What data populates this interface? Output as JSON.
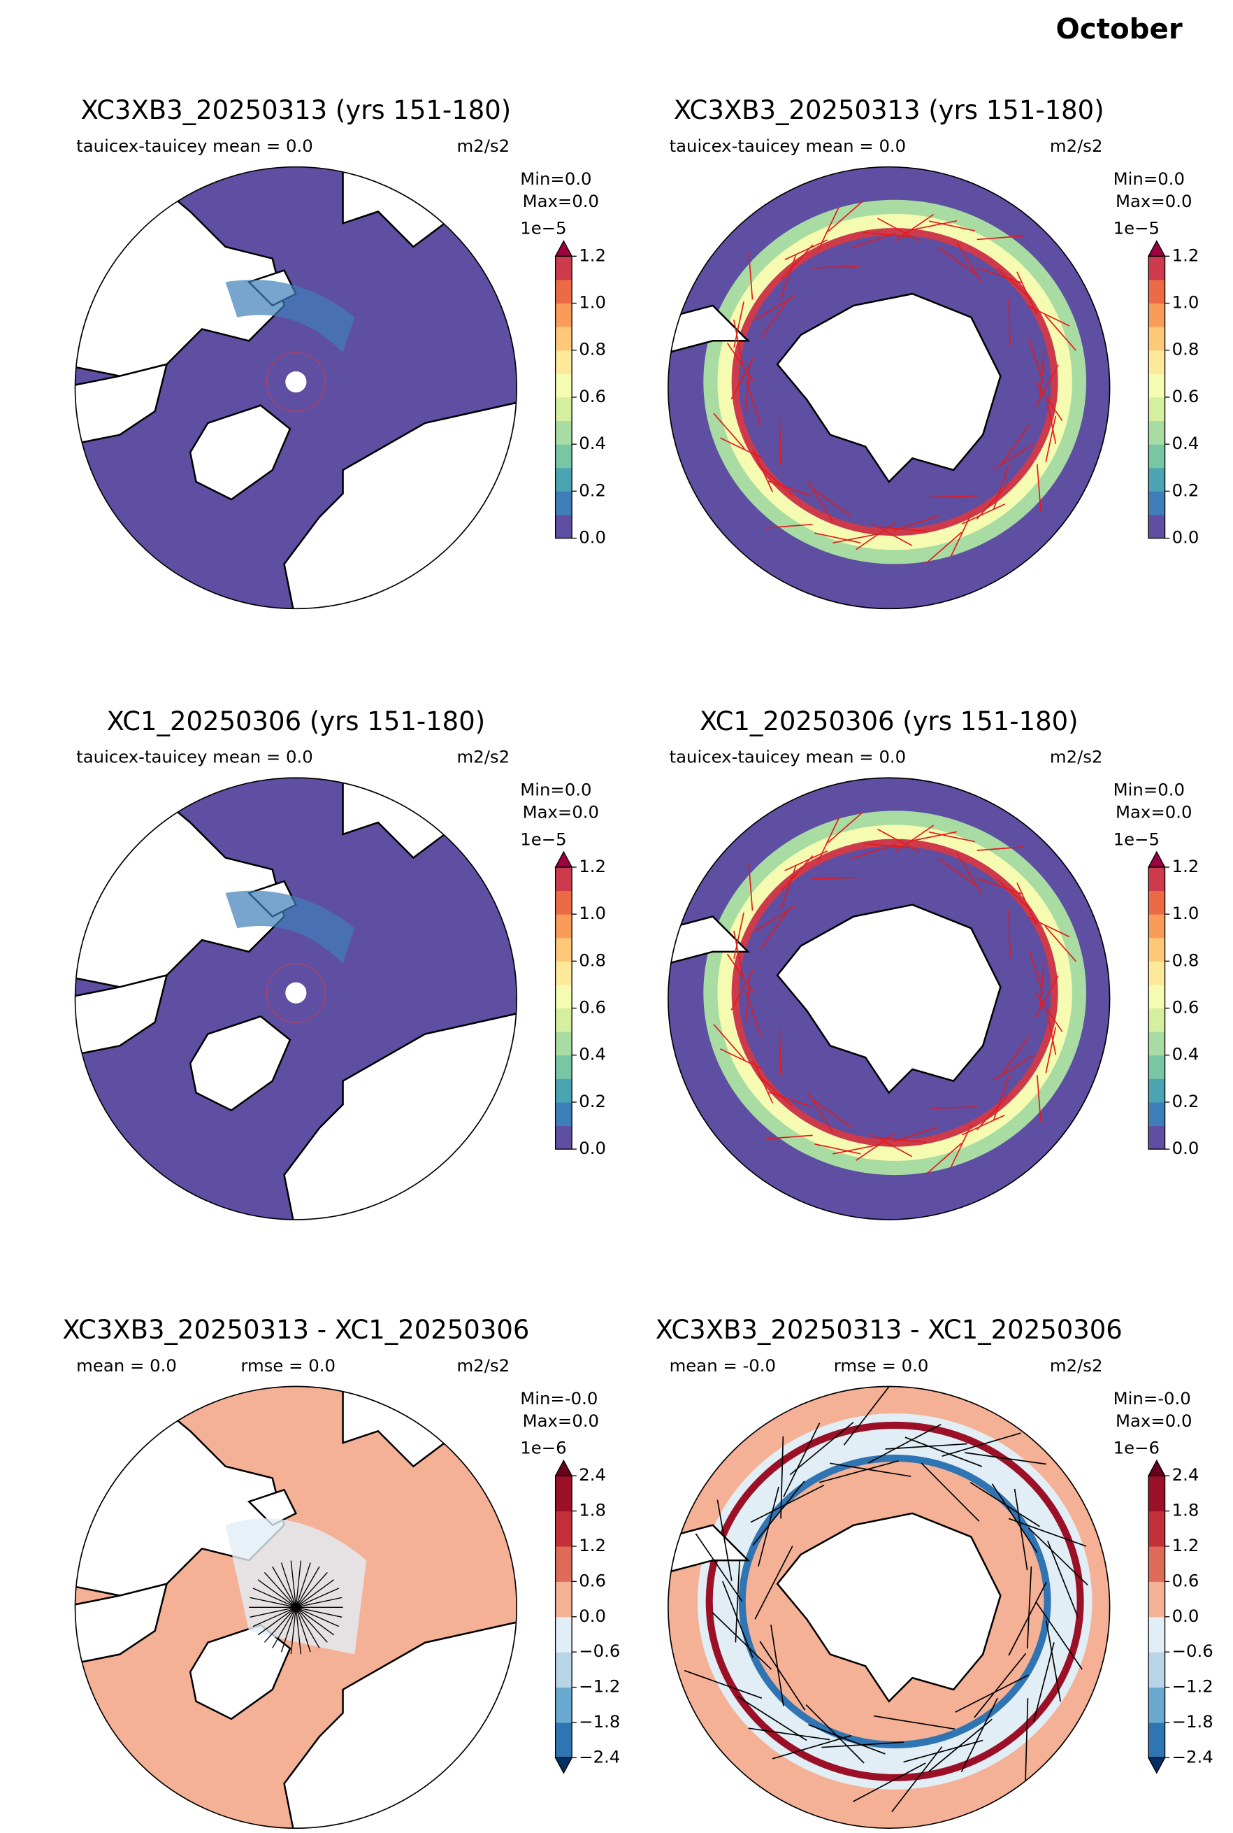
{
  "title": "October",
  "panels": [
    {
      "title": "XC3XB3_20250313 (yrs 151-180)",
      "stats": [
        "tauicex-tauicey  mean = 0.0"
      ],
      "units": "m2/s2",
      "min": "Min=0.0",
      "max": "Max=0.0",
      "colorbar": {
        "exponent": "1e−5",
        "colors": [
          "#5e4fa2",
          "#3f7fb9",
          "#4ba4b1",
          "#78c6a4",
          "#a8dca2",
          "#d5eea0",
          "#f5fbb1",
          "#fee99a",
          "#fdc877",
          "#f99c59",
          "#ec6a46",
          "#cd3a4b"
        ],
        "over": "#9e0142",
        "ticks": [
          {
            "value": 0,
            "label": "0.0"
          },
          {
            "value": 0.2,
            "label": "0.2"
          },
          {
            "value": 0.4,
            "label": "0.4"
          },
          {
            "value": 0.6,
            "label": "0.6"
          },
          {
            "value": 0.8,
            "label": "0.8"
          },
          {
            "value": 1.0,
            "label": "1.0"
          },
          {
            "value": 1.2,
            "label": "1.2"
          }
        ]
      }
    },
    {
      "title": "XC3XB3_20250313 (yrs 151-180)",
      "stats": [
        "tauicex-tauicey  mean = 0.0"
      ],
      "units": "m2/s2",
      "min": "Min=0.0",
      "max": "Max=0.0",
      "colorbar": {
        "exponent": "1e−5",
        "colors": [
          "#5e4fa2",
          "#3f7fb9",
          "#4ba4b1",
          "#78c6a4",
          "#a8dca2",
          "#d5eea0",
          "#f5fbb1",
          "#fee99a",
          "#fdc877",
          "#f99c59",
          "#ec6a46",
          "#cd3a4b"
        ],
        "over": "#9e0142",
        "ticks": [
          {
            "value": 0,
            "label": "0.0"
          },
          {
            "value": 0.2,
            "label": "0.2"
          },
          {
            "value": 0.4,
            "label": "0.4"
          },
          {
            "value": 0.6,
            "label": "0.6"
          },
          {
            "value": 0.8,
            "label": "0.8"
          },
          {
            "value": 1.0,
            "label": "1.0"
          },
          {
            "value": 1.2,
            "label": "1.2"
          }
        ]
      }
    },
    {
      "title": "XC1_20250306 (yrs 151-180)",
      "stats": [
        "tauicex-tauicey  mean = 0.0"
      ],
      "units": "m2/s2",
      "min": "Min=0.0",
      "max": "Max=0.0",
      "colorbar": {
        "exponent": "1e−5",
        "colors": [
          "#5e4fa2",
          "#3f7fb9",
          "#4ba4b1",
          "#78c6a4",
          "#a8dca2",
          "#d5eea0",
          "#f5fbb1",
          "#fee99a",
          "#fdc877",
          "#f99c59",
          "#ec6a46",
          "#cd3a4b"
        ],
        "over": "#9e0142",
        "ticks": [
          {
            "value": 0,
            "label": "0.0"
          },
          {
            "value": 0.2,
            "label": "0.2"
          },
          {
            "value": 0.4,
            "label": "0.4"
          },
          {
            "value": 0.6,
            "label": "0.6"
          },
          {
            "value": 0.8,
            "label": "0.8"
          },
          {
            "value": 1.0,
            "label": "1.0"
          },
          {
            "value": 1.2,
            "label": "1.2"
          }
        ]
      }
    },
    {
      "title": "XC1_20250306 (yrs 151-180)",
      "stats": [
        "tauicex-tauicey  mean = 0.0"
      ],
      "units": "m2/s2",
      "min": "Min=0.0",
      "max": "Max=0.0",
      "colorbar": {
        "exponent": "1e−5",
        "colors": [
          "#5e4fa2",
          "#3f7fb9",
          "#4ba4b1",
          "#78c6a4",
          "#a8dca2",
          "#d5eea0",
          "#f5fbb1",
          "#fee99a",
          "#fdc877",
          "#f99c59",
          "#ec6a46",
          "#cd3a4b"
        ],
        "over": "#9e0142",
        "ticks": [
          {
            "value": 0,
            "label": "0.0"
          },
          {
            "value": 0.2,
            "label": "0.2"
          },
          {
            "value": 0.4,
            "label": "0.4"
          },
          {
            "value": 0.6,
            "label": "0.6"
          },
          {
            "value": 0.8,
            "label": "0.8"
          },
          {
            "value": 1.0,
            "label": "1.0"
          },
          {
            "value": 1.2,
            "label": "1.2"
          }
        ]
      }
    },
    {
      "title": "XC3XB3_20250313 - XC1_20250306",
      "stats": [
        "mean = 0.0",
        "rmse = 0.0"
      ],
      "units": "m2/s2",
      "min": "Min=-0.0",
      "max": "Max=0.0",
      "colorbar": {
        "exponent": "1e−6",
        "colors": [
          "#2f74b3",
          "#6aa9d0",
          "#b8d5e8",
          "#e2eef5",
          "#f5b195",
          "#de6b57",
          "#c3303a",
          "#9b1027"
        ],
        "under": "#053061",
        "over": "#67001f",
        "ticks": [
          {
            "value": -2.4,
            "label": "−2.4"
          },
          {
            "value": -1.8,
            "label": "−1.8"
          },
          {
            "value": -1.2,
            "label": "−1.2"
          },
          {
            "value": -0.6,
            "label": "−0.6"
          },
          {
            "value": 0,
            "label": "0.0"
          },
          {
            "value": 0.6,
            "label": "0.6"
          },
          {
            "value": 1.2,
            "label": "1.2"
          },
          {
            "value": 1.8,
            "label": "1.8"
          },
          {
            "value": 2.4,
            "label": "2.4"
          }
        ]
      }
    },
    {
      "title": "XC3XB3_20250313 - XC1_20250306",
      "stats": [
        "mean = -0.0",
        "rmse = 0.0"
      ],
      "units": "m2/s2",
      "min": "Min=-0.0",
      "max": "Max=0.0",
      "colorbar": {
        "exponent": "1e−6",
        "colors": [
          "#2f74b3",
          "#6aa9d0",
          "#b8d5e8",
          "#e2eef5",
          "#f5b195",
          "#de6b57",
          "#c3303a",
          "#9b1027"
        ],
        "under": "#053061",
        "over": "#67001f",
        "ticks": [
          {
            "value": -2.4,
            "label": "−2.4"
          },
          {
            "value": -1.8,
            "label": "−1.8"
          },
          {
            "value": -1.2,
            "label": "−1.2"
          },
          {
            "value": -0.6,
            "label": "−0.6"
          },
          {
            "value": 0,
            "label": "0.0"
          },
          {
            "value": 0.6,
            "label": "0.6"
          },
          {
            "value": 1.2,
            "label": "1.2"
          },
          {
            "value": 1.8,
            "label": "1.8"
          },
          {
            "value": 2.4,
            "label": "2.4"
          }
        ]
      }
    }
  ]
}
